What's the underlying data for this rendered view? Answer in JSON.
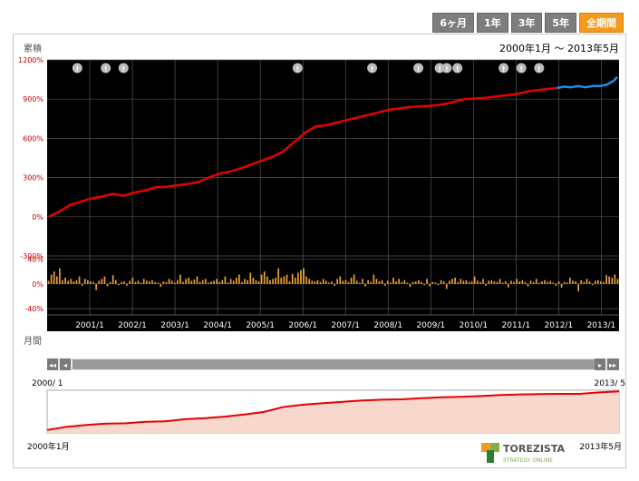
{
  "tabs": [
    {
      "label": "6ヶ月",
      "active": false
    },
    {
      "label": "1年",
      "active": false
    },
    {
      "label": "3年",
      "active": false
    },
    {
      "label": "5年",
      "active": false
    },
    {
      "label": "全期間",
      "active": true
    }
  ],
  "header": {
    "period_label": "2000年1月 〜 2013年5月"
  },
  "navigator": {
    "start_label": "2000/ 1",
    "end_label": "2013/ 5",
    "bottom_start": "2000年1月",
    "bottom_end": "2013年5月"
  },
  "logo": {
    "name": "TOREZISTA",
    "tagline": "STRATEGY ONLINE"
  },
  "colors": {
    "plot_bg": "#000000",
    "cumulative_line": "#e60000",
    "forecast_line": "#1e8fe6",
    "bars": "#f0a030",
    "axis_label": "#c00000",
    "nav_fill": "#f8d8cc",
    "accent_tab": "#f39a1c"
  },
  "chart_data": [
    {
      "type": "line",
      "ylabel": "累積",
      "ylim": [
        -300,
        1200
      ],
      "yticks": [
        -300,
        0,
        300,
        600,
        900,
        1200
      ],
      "ytick_labels": [
        "-300%",
        "0%",
        "300%",
        "600%",
        "900%",
        "1200%"
      ],
      "xticks": [
        "2001/1",
        "2002/1",
        "2003/1",
        "2004/1",
        "2005/1",
        "2006/1",
        "2007/1",
        "2008/1",
        "2009/1",
        "2010/1",
        "2011/1",
        "2012/1",
        "2013/1"
      ],
      "x_range": [
        "2000/1",
        "2013/5"
      ],
      "grid": true,
      "series": [
        {
          "x": [
            "2000/1",
            "2000/4",
            "2000/7",
            "2000/10",
            "2001/1",
            "2001/4",
            "2001/7",
            "2001/10",
            "2002/1",
            "2002/4",
            "2002/7",
            "2002/10",
            "2003/1",
            "2003/4",
            "2003/7",
            "2003/10",
            "2004/1",
            "2004/4",
            "2004/7",
            "2004/10",
            "2005/1",
            "2005/4",
            "2005/7",
            "2005/10",
            "2006/1",
            "2006/4",
            "2006/7",
            "2006/10",
            "2007/1",
            "2007/4",
            "2007/7",
            "2007/10",
            "2008/1",
            "2008/4",
            "2008/7",
            "2008/10",
            "2009/1",
            "2009/4",
            "2009/7",
            "2009/10",
            "2010/1",
            "2010/4",
            "2010/7",
            "2010/10",
            "2011/1",
            "2011/4",
            "2011/7",
            "2011/10",
            "2011/12"
          ],
          "values": [
            0,
            40,
            90,
            115,
            140,
            155,
            175,
            160,
            185,
            200,
            225,
            230,
            240,
            250,
            265,
            300,
            330,
            345,
            370,
            400,
            430,
            460,
            500,
            570,
            640,
            690,
            700,
            720,
            740,
            760,
            780,
            800,
            820,
            830,
            840,
            845,
            850,
            860,
            880,
            900,
            905,
            910,
            920,
            930,
            940,
            960,
            970,
            980,
            985
          ]
        },
        {
          "x": [
            "2011/12",
            "2012/2",
            "2012/4",
            "2012/6",
            "2012/8",
            "2012/10",
            "2012/12",
            "2013/2",
            "2013/4",
            "2013/5"
          ],
          "values": [
            985,
            995,
            990,
            1000,
            990,
            1000,
            1000,
            1010,
            1040,
            1070
          ]
        }
      ],
      "event_markers": [
        "2000/9",
        "2001/5",
        "2001/10",
        "2005/11",
        "2007/8",
        "2008/9",
        "2009/3",
        "2009/5",
        "2009/8",
        "2010/9",
        "2011/2",
        "2011/7"
      ]
    },
    {
      "type": "bar",
      "ylabel": "月間",
      "ylim": [
        -50,
        45
      ],
      "yticks": [
        -40,
        0,
        40
      ],
      "ytick_labels": [
        "-40%",
        "0%",
        "40%"
      ],
      "x_range": [
        "2000/1",
        "2013/5"
      ],
      "values": [
        5,
        15,
        20,
        12,
        25,
        6,
        10,
        5,
        8,
        4,
        6,
        12,
        -3,
        8,
        6,
        4,
        3,
        -10,
        5,
        8,
        12,
        -4,
        3,
        14,
        6,
        -2,
        3,
        4,
        -3,
        5,
        10,
        3,
        5,
        2,
        8,
        5,
        4,
        6,
        3,
        2,
        -5,
        4,
        3,
        8,
        5,
        2,
        6,
        15,
        3,
        8,
        10,
        5,
        7,
        12,
        3,
        6,
        8,
        2,
        4,
        5,
        8,
        3,
        6,
        12,
        2,
        8,
        5,
        10,
        15,
        3,
        8,
        6,
        18,
        10,
        6,
        4,
        15,
        20,
        12,
        6,
        8,
        10,
        25,
        10,
        12,
        15,
        4,
        16,
        10,
        18,
        22,
        25,
        12,
        8,
        5,
        4,
        6,
        3,
        8,
        5,
        2,
        4,
        -3,
        8,
        12,
        5,
        6,
        3,
        10,
        15,
        5,
        2,
        8,
        -4,
        6,
        3,
        15,
        8,
        4,
        6,
        -3,
        5,
        2,
        10,
        4,
        8,
        3,
        6,
        2,
        -5,
        3,
        4,
        6,
        3,
        -2,
        8,
        -4,
        3,
        2,
        -2,
        6,
        4,
        -8,
        5,
        8,
        10,
        3,
        8,
        5,
        6,
        3,
        4,
        12,
        5,
        3,
        8,
        -3,
        5,
        6,
        4,
        3,
        8,
        2,
        4,
        -6,
        5,
        3,
        8,
        4,
        6,
        3,
        -4,
        5,
        3,
        8,
        2,
        4,
        6,
        3,
        5,
        2,
        -3,
        4,
        -6,
        3,
        2,
        10,
        5,
        4,
        -12,
        6,
        3,
        8,
        4,
        -2,
        5,
        6,
        4,
        3,
        14,
        12,
        10,
        15,
        8
      ]
    },
    {
      "type": "area",
      "x_range": [
        "2000/1",
        "2013/5"
      ],
      "ylim": [
        -80,
        1100
      ],
      "values": [
        0,
        90,
        140,
        175,
        185,
        230,
        240,
        300,
        330,
        370,
        430,
        500,
        640,
        700,
        740,
        780,
        820,
        840,
        850,
        880,
        905,
        920,
        940,
        970,
        985,
        995,
        1000,
        1000,
        1040,
        1070
      ]
    }
  ]
}
